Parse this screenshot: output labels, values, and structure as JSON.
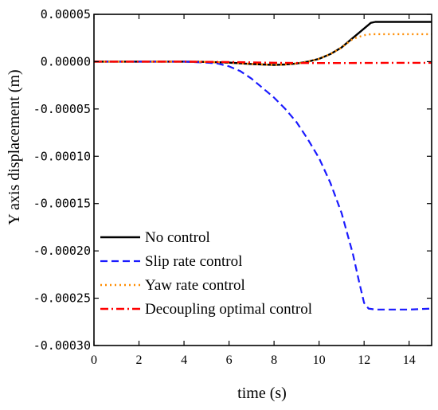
{
  "chart_data": {
    "type": "line",
    "title": "",
    "xlabel": "time (s)",
    "ylabel": "Y axis displacement (m)",
    "xlim": [
      0,
      15
    ],
    "ylim": [
      -0.0003,
      5e-05
    ],
    "xticks": [
      0,
      2,
      4,
      6,
      8,
      10,
      12,
      14
    ],
    "xtick_labels": [
      "0",
      "2",
      "4",
      "6",
      "8",
      "10",
      "12",
      "14"
    ],
    "yticks": [
      5e-05,
      0,
      -5e-05,
      -0.0001,
      -0.00015,
      -0.0002,
      -0.00025,
      -0.0003
    ],
    "ytick_labels": [
      "0.00005",
      "0.00000",
      "-0.00005",
      "-0.00010",
      "-0.00015",
      "-0.00020",
      "-0.00025",
      "-0.00030"
    ],
    "grid": false,
    "legend_position": "bottom-left",
    "series": [
      {
        "name": "No control",
        "color": "#000000",
        "style": "solid",
        "x": [
          0,
          2,
          4,
          5,
          6,
          7,
          7.5,
          8,
          8.5,
          9,
          9.5,
          10,
          10.5,
          11,
          11.5,
          12,
          12.3,
          12.5,
          13,
          14,
          15
        ],
        "y": [
          0,
          0,
          0,
          -3e-07,
          -1e-06,
          -2.5e-06,
          -3e-06,
          -3.5e-06,
          -3e-06,
          -2e-06,
          0,
          3e-06,
          8e-06,
          1.5e-05,
          2.5e-05,
          3.5e-05,
          4.1e-05,
          4.2e-05,
          4.2e-05,
          4.2e-05,
          4.2e-05
        ]
      },
      {
        "name": "Slip rate control",
        "color": "#1a1aff",
        "style": "dashed",
        "x": [
          0,
          2,
          4,
          5,
          5.5,
          6,
          6.5,
          7,
          7.5,
          8,
          8.5,
          9,
          9.5,
          10,
          10.5,
          11,
          11.5,
          11.8,
          12,
          12.2,
          12.5,
          13,
          14,
          15
        ],
        "y": [
          0,
          0,
          0,
          -1e-06,
          -2e-06,
          -5e-06,
          -1e-05,
          -1.8e-05,
          -2.8e-05,
          -3.8e-05,
          -5e-05,
          -6.4e-05,
          -8.2e-05,
          -0.000102,
          -0.000128,
          -0.00016,
          -0.000203,
          -0.000235,
          -0.000255,
          -0.000261,
          -0.000262,
          -0.000262,
          -0.000262,
          -0.000261
        ]
      },
      {
        "name": "Yaw  rate control",
        "color": "#ff8c00",
        "style": "dotted",
        "x": [
          0,
          2,
          4,
          5,
          6,
          7,
          7.5,
          8,
          8.5,
          9,
          9.5,
          10,
          10.5,
          11,
          11.5,
          12,
          12.3,
          12.5,
          13,
          14,
          15
        ],
        "y": [
          0,
          0,
          0,
          -3e-07,
          -1e-06,
          -2.5e-06,
          -3e-06,
          -3.5e-06,
          -3e-06,
          -2e-06,
          0,
          3e-06,
          8e-06,
          1.5e-05,
          2.4e-05,
          2.8e-05,
          2.9e-05,
          2.9e-05,
          2.9e-05,
          2.9e-05,
          2.9e-05
        ]
      },
      {
        "name": "Decoupling optimal control",
        "color": "#ff0000",
        "style": "dashdot",
        "x": [
          0,
          2,
          4,
          6,
          7,
          8,
          9,
          10,
          11,
          12,
          13,
          14,
          15
        ],
        "y": [
          0,
          0,
          0,
          -4e-07,
          -8e-07,
          -1.2e-06,
          -1.4e-06,
          -1.5e-06,
          -1.5e-06,
          -1.4e-06,
          -1.3e-06,
          -1.3e-06,
          -1.3e-06
        ]
      }
    ]
  }
}
